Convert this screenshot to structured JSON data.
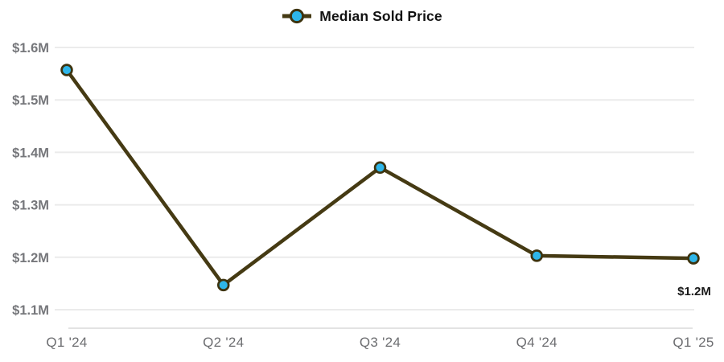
{
  "legend": {
    "label": "Median Sold Price"
  },
  "chart_data": {
    "type": "line",
    "title": "",
    "categories": [
      "Q1 '24",
      "Q2 '24",
      "Q3 '24",
      "Q4 '24",
      "Q1 '25"
    ],
    "series": [
      {
        "name": "Median Sold Price",
        "values": [
          1.557,
          1.147,
          1.371,
          1.203,
          1.198
        ]
      }
    ],
    "unit": "million USD",
    "xlabel": "",
    "ylabel": "",
    "ylim": [
      1.1,
      1.6
    ],
    "y_ticks": [
      1.1,
      1.2,
      1.3,
      1.4,
      1.5,
      1.6
    ],
    "y_tick_labels": [
      "$1.1M",
      "$1.2M",
      "$1.3M",
      "$1.4M",
      "$1.5M",
      "$1.6M"
    ],
    "grid": true,
    "legend_position": "top-center",
    "annotations": [
      {
        "point_index": 4,
        "text": "$1.2M"
      }
    ],
    "colors": {
      "line": "#453a13",
      "marker_fill": "#2eb6e9",
      "marker_stroke": "#3d330e",
      "grid": "#ebebeb",
      "axis_line": "#e3e3e3",
      "y_label": "#76777b",
      "x_label": "#6d6e71",
      "annotation": "#1a1a1a",
      "legend_text": "#121212",
      "background": "#ffffff"
    }
  }
}
